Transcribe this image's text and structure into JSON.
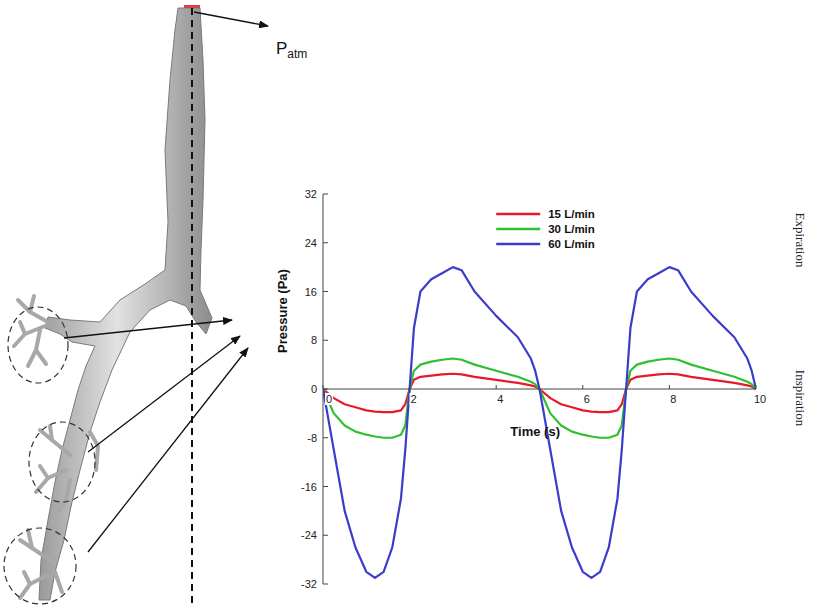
{
  "chart_data": {
    "type": "line",
    "xlabel": "Time (s)",
    "ylabel": "Pressure (Pa)",
    "x": [
      0,
      0.25,
      0.5,
      0.75,
      1,
      1.2,
      1.4,
      1.6,
      1.8,
      1.9,
      2,
      2.1,
      2.25,
      2.5,
      2.75,
      3,
      3.2,
      3.5,
      4,
      4.5,
      4.8,
      4.9,
      5,
      5.25,
      5.5,
      5.75,
      6,
      6.2,
      6.4,
      6.6,
      6.8,
      6.9,
      7,
      7.1,
      7.25,
      7.5,
      7.75,
      8,
      8.2,
      8.5,
      9,
      9.5,
      9.8,
      9.9,
      10
    ],
    "series": [
      {
        "name": "15 L/min",
        "color": "#e8192c",
        "values": [
          0,
          -1.5,
          -2.5,
          -3,
          -3.5,
          -3.7,
          -3.8,
          -3.8,
          -3.5,
          -2.5,
          0,
          1.5,
          2,
          2.2,
          2.4,
          2.5,
          2.4,
          2,
          1.5,
          1,
          0.6,
          0.4,
          0,
          -1.5,
          -2.5,
          -3,
          -3.5,
          -3.7,
          -3.8,
          -3.8,
          -3.5,
          -2.5,
          0,
          1.5,
          2,
          2.2,
          2.4,
          2.5,
          2.4,
          2,
          1.5,
          1,
          0.6,
          0.4,
          0
        ]
      },
      {
        "name": "30 L/min",
        "color": "#2fbf2f",
        "values": [
          0,
          -4,
          -6,
          -7,
          -7.5,
          -7.8,
          -8,
          -8,
          -7.5,
          -6,
          0,
          3,
          4,
          4.5,
          4.8,
          5,
          4.8,
          4,
          3,
          2,
          1.2,
          0.8,
          0,
          -4,
          -6,
          -7,
          -7.5,
          -7.8,
          -8,
          -8,
          -7.5,
          -6,
          0,
          3,
          4,
          4.5,
          4.8,
          5,
          4.8,
          4,
          3,
          2,
          1.2,
          0.8,
          0
        ]
      },
      {
        "name": "60 L/min",
        "color": "#3c3ccc",
        "values": [
          0,
          -10,
          -20,
          -26,
          -30,
          -31,
          -30,
          -26,
          -18,
          -10,
          0,
          10,
          16,
          18,
          19,
          20,
          19.5,
          16,
          12,
          8.5,
          5,
          3,
          0,
          -10,
          -20,
          -26,
          -30,
          -31,
          -30,
          -26,
          -18,
          -10,
          0,
          10,
          16,
          18,
          19,
          20,
          19.5,
          16,
          12,
          8.5,
          5,
          3,
          0
        ]
      }
    ],
    "xlim": [
      0,
      10
    ],
    "xticks": [
      0,
      2,
      4,
      6,
      8,
      10
    ],
    "ylim": [
      -32,
      32
    ],
    "yticks": [
      -32,
      -24,
      -16,
      -8,
      0,
      8,
      16,
      24,
      32
    ],
    "grid": false,
    "legend": "top",
    "annotations": [
      {
        "text": "Expiration"
      },
      {
        "text": "Inspiration"
      },
      {
        "text": "P",
        "subscript": "atm"
      }
    ]
  }
}
